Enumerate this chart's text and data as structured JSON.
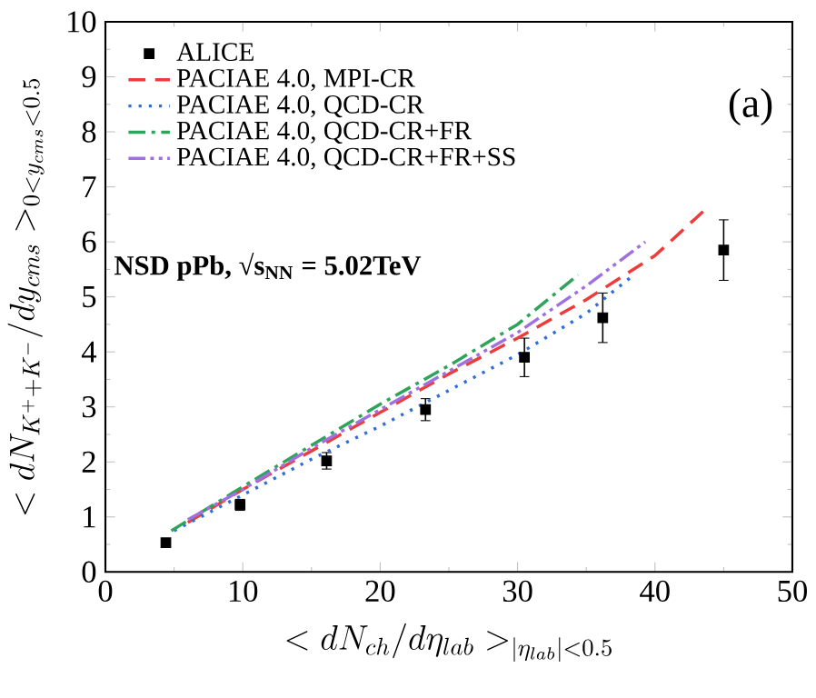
{
  "chart_data": {
    "type": "line",
    "xlabel": "< dN_{ch}/d\\eta_{lab} >_{|\\eta_{lab}|<0.5}",
    "ylabel": "< dN_{K^{+}+K^{-}}/dy_{cms} >_{0<y_{cms}<0.5}",
    "xlim": [
      0,
      50
    ],
    "ylim": [
      0,
      10
    ],
    "xticks": [
      0,
      10,
      20,
      30,
      40,
      50
    ],
    "yticks": [
      0,
      1,
      2,
      3,
      4,
      5,
      6,
      7,
      8,
      9,
      10
    ],
    "grid": false,
    "legend": "top left",
    "annotations": [
      "(a)",
      "NSD pPb, √s$_{NN}$ = 5.02TeV"
    ],
    "series": [
      {
        "name": "ALICE",
        "type": "scatter",
        "marker": "square",
        "color": "#000000",
        "x": [
          4.4,
          9.8,
          16.1,
          23.3,
          30.5,
          36.2,
          45.0
        ],
        "values": [
          0.53,
          1.22,
          2.02,
          2.95,
          3.9,
          4.62,
          5.85
        ],
        "errors": [
          0.05,
          0.1,
          0.15,
          0.2,
          0.35,
          0.45,
          0.55
        ]
      },
      {
        "name": "PACIAE 4.0, MPI-CR",
        "type": "line",
        "line_style": "dashed",
        "color": "#ee3b3b",
        "x": [
          6,
          10,
          15,
          20,
          25,
          30,
          35,
          40,
          43.5
        ],
        "values": [
          0.9,
          1.5,
          2.2,
          2.9,
          3.6,
          4.25,
          4.95,
          5.75,
          6.55
        ]
      },
      {
        "name": "PACIAE 4.0, QCD-CR",
        "type": "line",
        "line_style": "dotted",
        "color": "#2f6fdc",
        "x": [
          5,
          10,
          15,
          20,
          25,
          30,
          35,
          38.2
        ],
        "values": [
          0.75,
          1.4,
          2.05,
          2.65,
          3.3,
          3.95,
          4.7,
          5.35
        ]
      },
      {
        "name": "PACIAE 4.0, QCD-CR+FR",
        "type": "line",
        "line_style": "dashdot",
        "color": "#2ea45a",
        "x": [
          4.8,
          10,
          15,
          20,
          25,
          30,
          34.4
        ],
        "values": [
          0.75,
          1.55,
          2.3,
          3.05,
          3.75,
          4.5,
          5.4
        ]
      },
      {
        "name": "PACIAE 4.0, QCD-CR+FR+SS",
        "type": "line",
        "line_style": "dashdotdot",
        "color": "#a070e0",
        "x": [
          6,
          10,
          15,
          20,
          25,
          30,
          35,
          39.3
        ],
        "values": [
          0.95,
          1.5,
          2.25,
          2.95,
          3.65,
          4.35,
          5.2,
          6.0
        ]
      }
    ]
  }
}
